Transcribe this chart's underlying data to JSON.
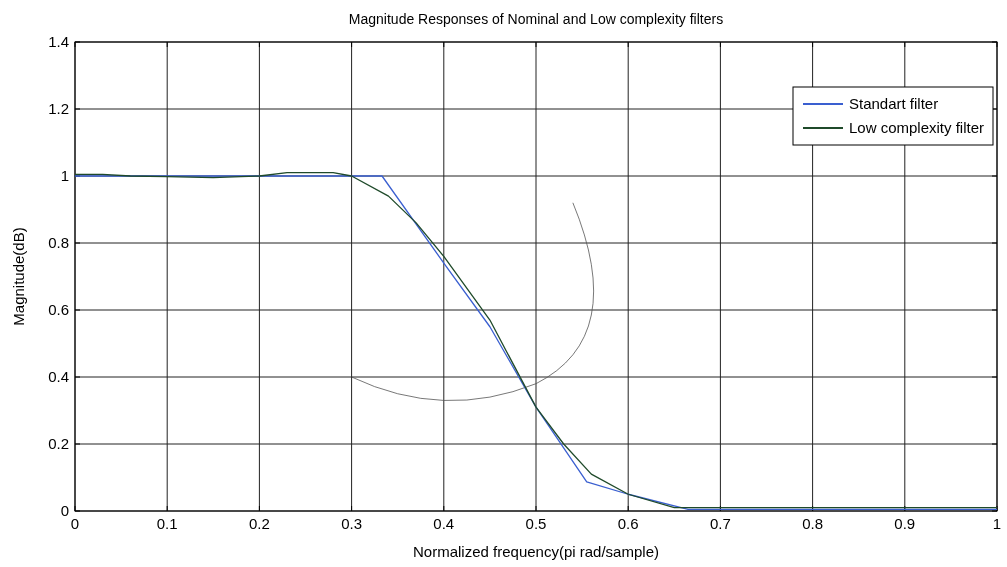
{
  "chart_data": {
    "type": "line",
    "title": "Magnitude Responses of Nominal and Low complexity filters",
    "xlabel": "Normalized frequency(pi rad/sample)",
    "ylabel": "Magnitude(dB)",
    "xlim": [
      0,
      1
    ],
    "ylim": [
      0,
      1.4
    ],
    "xticks": [
      0,
      0.1,
      0.2,
      0.3,
      0.4,
      0.5,
      0.6,
      0.7,
      0.8,
      0.9,
      {
        "value": 1,
        "label": "1"
      }
    ],
    "yticks": [
      0,
      0.2,
      0.4,
      0.6,
      0.8,
      1,
      1.2,
      1.4
    ],
    "grid": true,
    "legend": "top right",
    "line_style": "solid",
    "marker": "none",
    "series": [
      {
        "name": "Standart filter",
        "color": "#3a5fd0",
        "x": [
          0,
          0.333,
          0.4,
          0.45,
          0.5,
          0.555,
          0.6,
          0.665,
          0.7,
          1
        ],
        "values": [
          1,
          1,
          0.74,
          0.55,
          0.31,
          0.087,
          0.05,
          0.005,
          0.005,
          0.005
        ]
      },
      {
        "name": "Low complexity filter",
        "color": "#1f4a2a",
        "x": [
          0,
          0.03,
          0.06,
          0.1,
          0.15,
          0.18,
          0.2,
          0.23,
          0.28,
          0.3,
          0.34,
          0.37,
          0.4,
          0.45,
          0.5,
          0.53,
          0.56,
          0.6,
          0.65,
          0.7,
          1
        ],
        "values": [
          1.005,
          1.005,
          1.0,
          0.998,
          0.995,
          0.998,
          1.0,
          1.01,
          1.01,
          1.0,
          0.94,
          0.86,
          0.76,
          0.57,
          0.31,
          0.2,
          0.11,
          0.05,
          0.01,
          0.01,
          0.01
        ]
      }
    ]
  }
}
